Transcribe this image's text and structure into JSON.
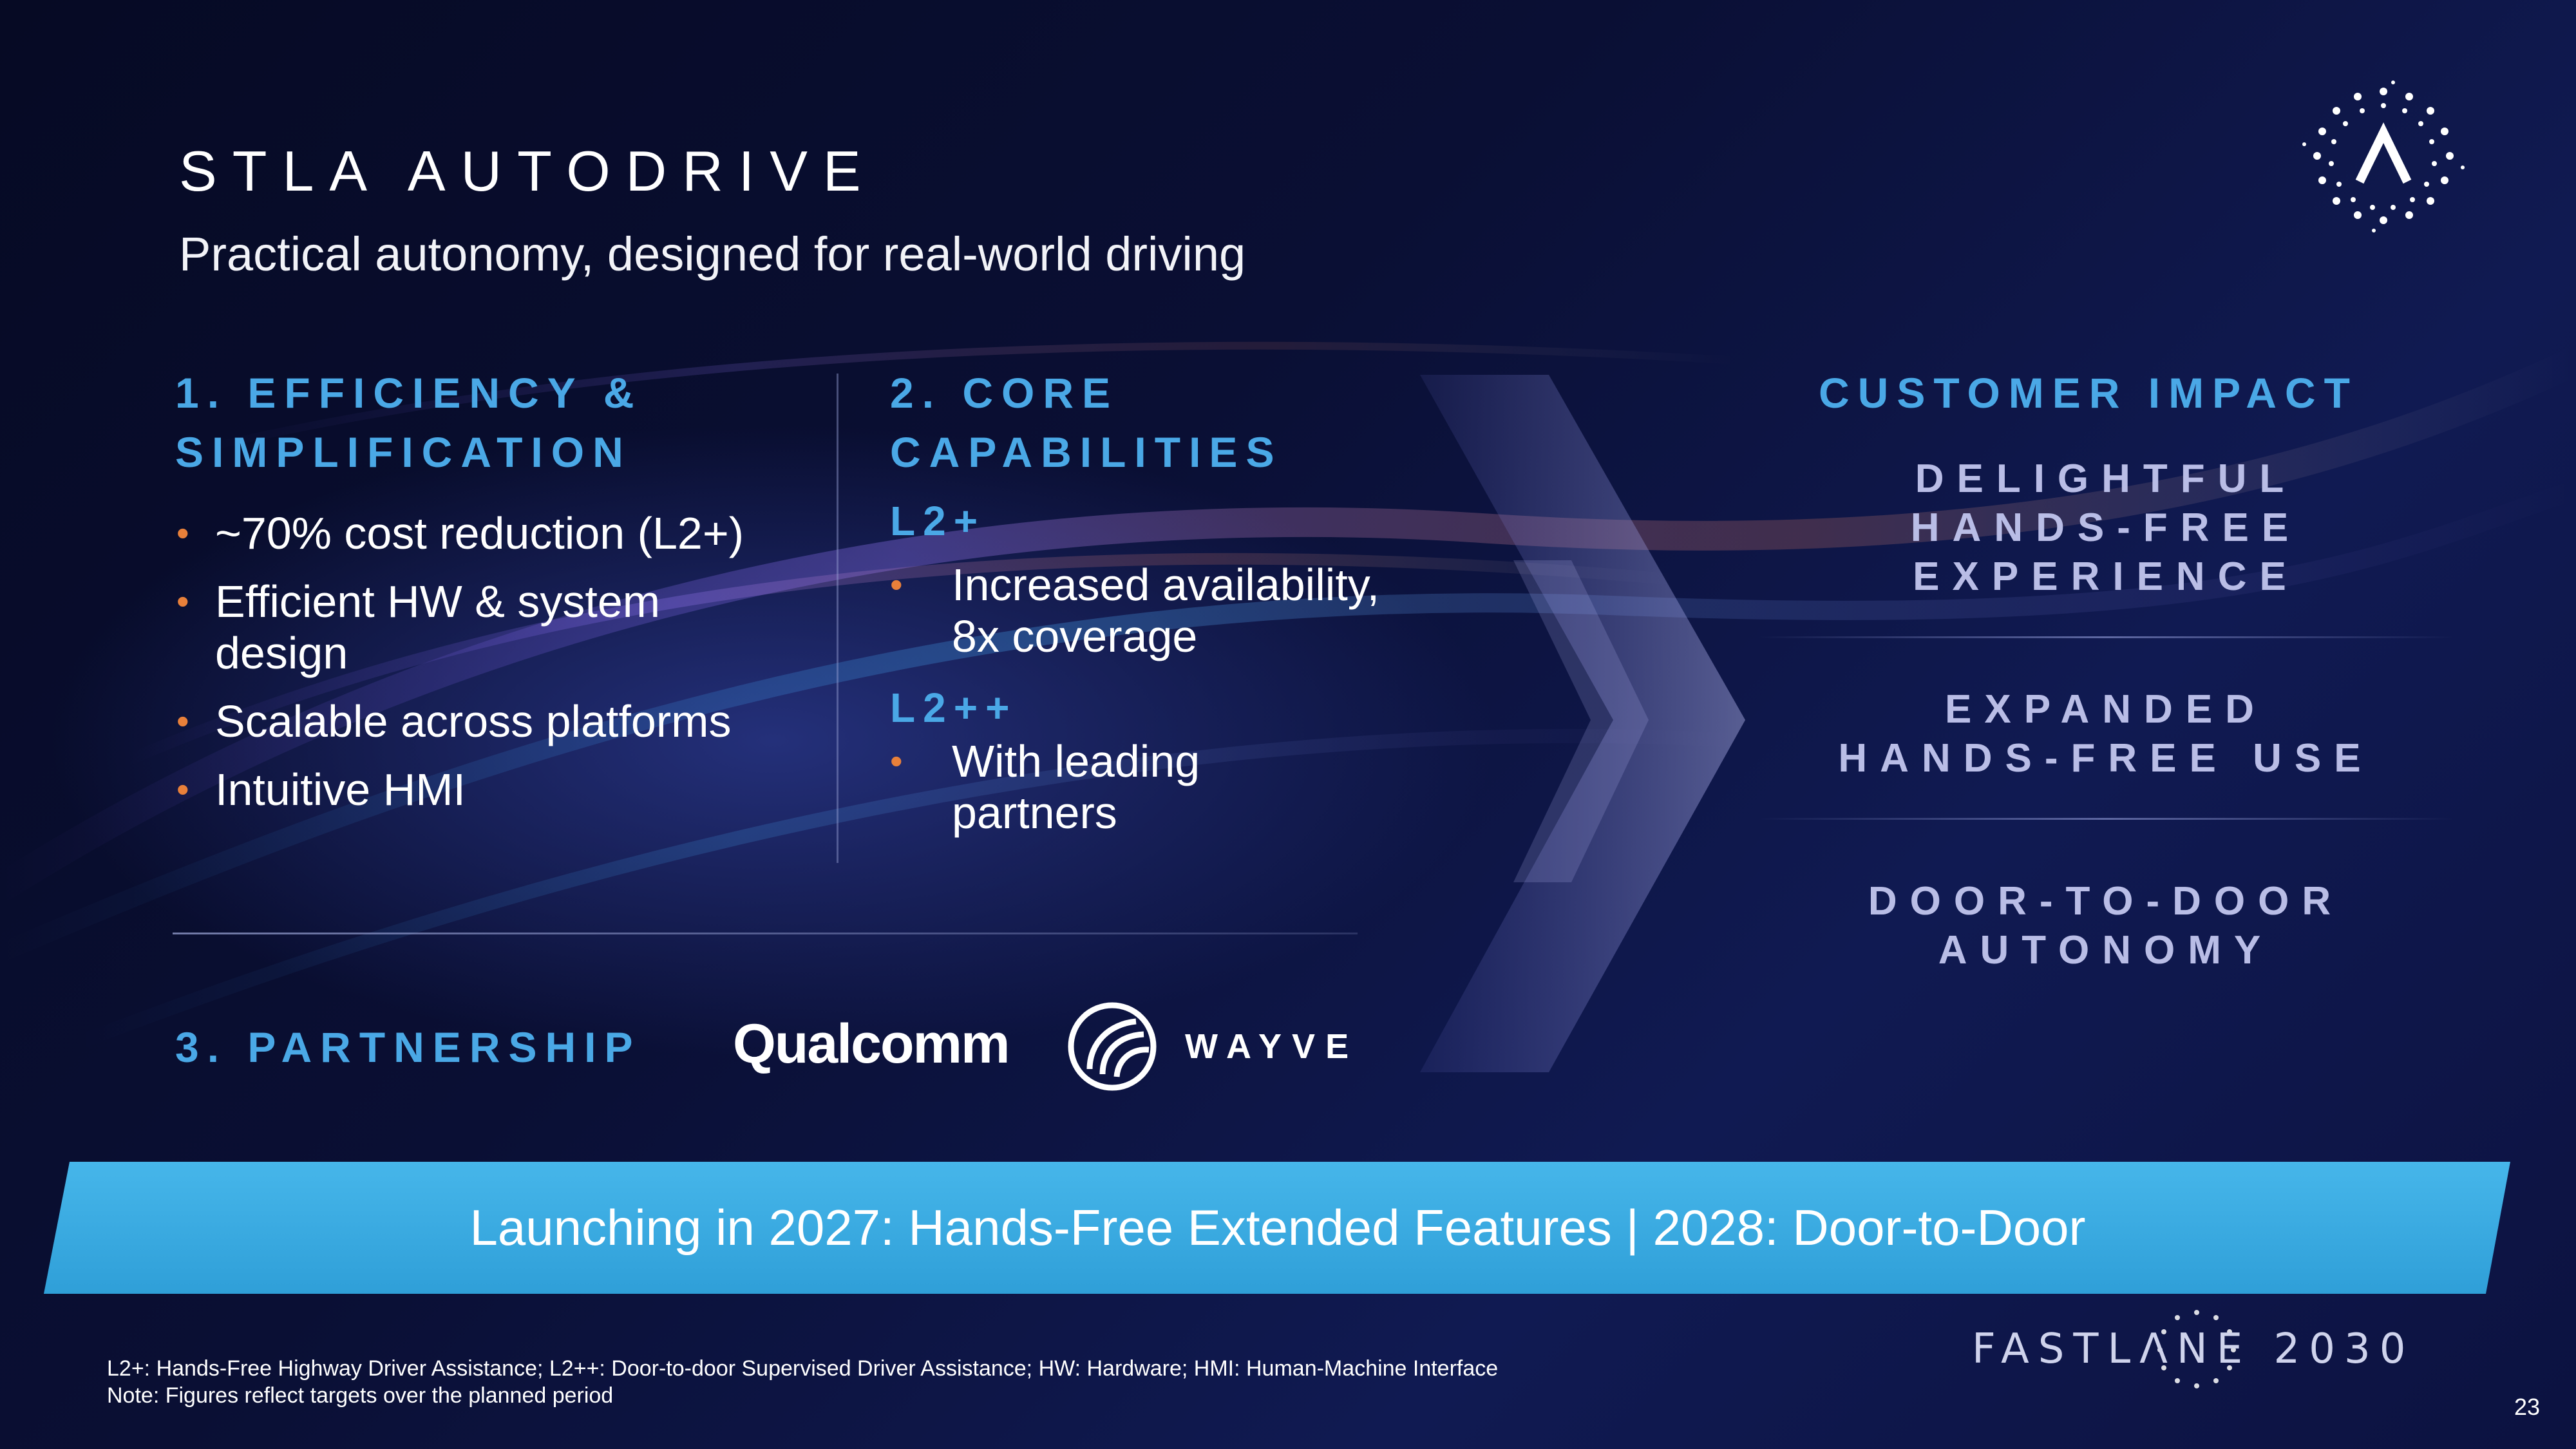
{
  "slide": {
    "title": "STLA AUTODRIVE",
    "subtitle": "Practical autonomy, designed for real-world driving",
    "page_number": "23"
  },
  "efficiency": {
    "heading_line1": "1. EFFICIENCY &",
    "heading_line2": "SIMPLIFICATION",
    "bullets": [
      "~70% cost reduction (L2+)",
      "Efficient HW & system design",
      "Scalable across platforms",
      "Intuitive HMI"
    ]
  },
  "core": {
    "heading_line1": "2. CORE",
    "heading_line2": "CAPABILITIES",
    "l2plus_label": "L2+",
    "l2plus_bullet": "Increased availability, 8x coverage",
    "l2plusplus_label": "L2++",
    "l2plusplus_bullet": "With leading partners"
  },
  "partnership": {
    "heading": "3. PARTNERSHIP",
    "partners": [
      "Qualcomm",
      "WAYVE"
    ]
  },
  "customer_impact": {
    "heading": "CUSTOMER IMPACT",
    "items": [
      [
        "DELIGHTFUL",
        "HANDS-FREE",
        "EXPERIENCE"
      ],
      [
        "EXPANDED",
        "HANDS-FREE USE"
      ],
      [
        "DOOR-TO-DOOR",
        "AUTONOMY"
      ]
    ]
  },
  "banner": {
    "text": "Launching in 2027: Hands-Free Extended Features |  2028: Door-to-Door"
  },
  "footnotes": {
    "line1": "L2+: Hands-Free Highway Driver Assistance; L2++: Door-to-door Supervised Driver Assistance; HW: Hardware; HMI: Human-Machine Interface",
    "line2": "Note: Figures reflect targets over the planned period"
  },
  "brand": {
    "fastlane": "FASTLΛNE 2030"
  },
  "colors": {
    "accent_blue": "#4aa8e6",
    "bullet_orange": "#e8803a",
    "banner_cyan": "#3fb0e4",
    "impact_text": "#b9bde6"
  }
}
